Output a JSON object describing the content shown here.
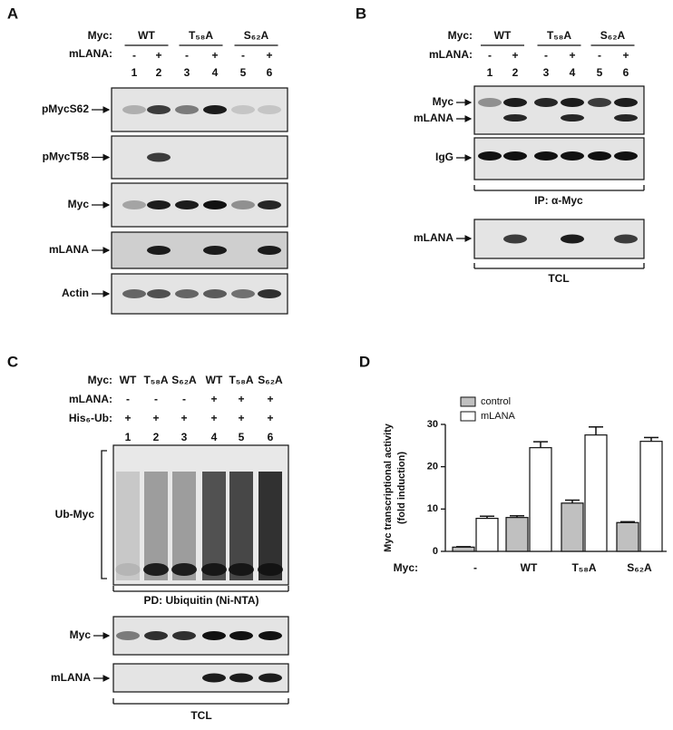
{
  "panel_a": {
    "letter": "A",
    "myc_label": "Myc:",
    "groups": [
      "WT",
      "T₅₈A",
      "S₆₂A"
    ],
    "mlana_label": "mLANA:",
    "mlana": [
      "-",
      "+",
      "-",
      "+",
      "-",
      "+"
    ],
    "lanes": [
      "1",
      "2",
      "3",
      "4",
      "5",
      "6"
    ],
    "blots": [
      "pMycS62",
      "pMycT58",
      "Myc",
      "mLANA",
      "Actin"
    ]
  },
  "panel_b": {
    "letter": "B",
    "myc_label": "Myc:",
    "groups": [
      "WT",
      "T₅₈A",
      "S₆₂A"
    ],
    "mlana_label": "mLANA:",
    "mlana": [
      "-",
      "+",
      "-",
      "+",
      "-",
      "+"
    ],
    "lanes": [
      "1",
      "2",
      "3",
      "4",
      "5",
      "6"
    ],
    "ip_blots": [
      [
        "Myc",
        "mLANA"
      ],
      [
        "IgG"
      ]
    ],
    "ip_caption": "IP: α-Myc",
    "tcl_blots": [
      "mLANA"
    ],
    "tcl_caption": "TCL"
  },
  "panel_c": {
    "letter": "C",
    "row_labels": [
      "Myc:",
      "mLANA:",
      "His₆-Ub:"
    ],
    "myc": [
      "WT",
      "T₅₈A",
      "S₆₂A",
      "WT",
      "T₅₈A",
      "S₆₂A"
    ],
    "mlana": [
      "-",
      "-",
      "-",
      "+",
      "+",
      "+"
    ],
    "his": [
      "+",
      "+",
      "+",
      "+",
      "+",
      "+"
    ],
    "lanes": [
      "1",
      "2",
      "3",
      "4",
      "5",
      "6"
    ],
    "pd_label": "Ub-Myc",
    "pd_caption": "PD: Ubiquitin (Ni-NTA)",
    "tcl_blots": [
      "Myc",
      "mLANA"
    ],
    "tcl_caption": "TCL"
  },
  "chart_data": {
    "type": "bar",
    "panel_label": "D",
    "ylabel": [
      "Myc transcriptional activity",
      "(fold induction)"
    ],
    "xlabel": "Myc:",
    "categories": [
      "-",
      "WT",
      "T₅₈A",
      "S₆₂A"
    ],
    "series": [
      {
        "name": "control",
        "color": "#c0c0c0",
        "values": [
          1.0,
          8.0,
          11.4,
          6.8
        ],
        "errors": [
          0.1,
          0.4,
          0.7,
          0.2
        ]
      },
      {
        "name": "mLANA",
        "color": "#ffffff",
        "values": [
          7.8,
          24.5,
          27.5,
          26.0
        ],
        "errors": [
          0.5,
          1.4,
          1.9,
          0.9
        ]
      }
    ],
    "ylim": [
      0,
      30
    ],
    "yticks": [
      0,
      10,
      20,
      30
    ],
    "legend": "top-left"
  }
}
